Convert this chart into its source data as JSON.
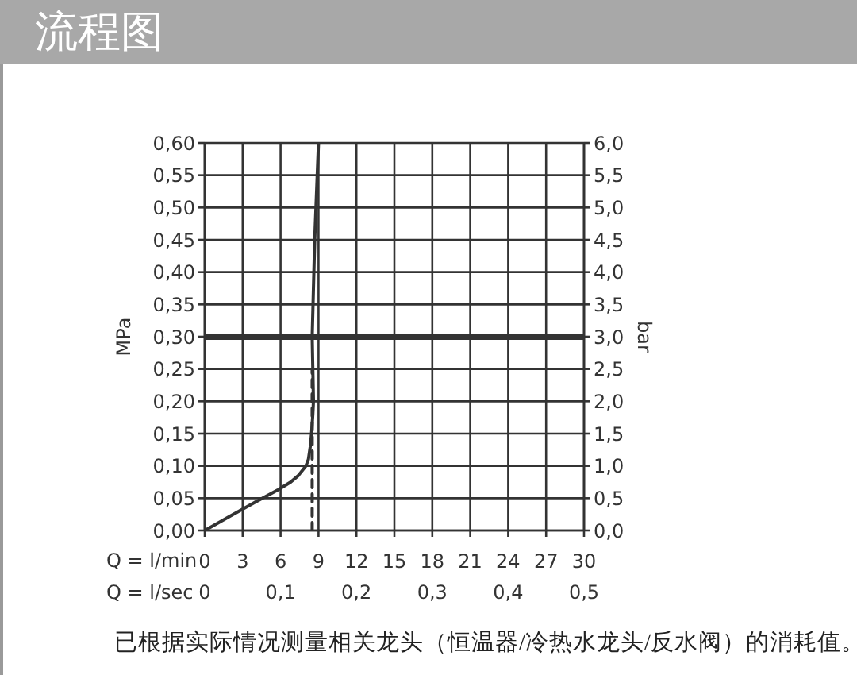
{
  "chart_data": {
    "type": "line",
    "title": "流程图",
    "xlabel": "Q = l/min",
    "x2label": "Q = l/sec",
    "ylabel": "MPa",
    "y2label": "bar",
    "xlim": [
      0,
      30
    ],
    "xticks": [
      0,
      3,
      6,
      9,
      12,
      15,
      18,
      21,
      24,
      27,
      30
    ],
    "x2lim": [
      0,
      0.5
    ],
    "x2ticks": [
      0,
      {
        "value": 0.1,
        "label": "0,1"
      },
      {
        "value": 0.2,
        "label": "0,2"
      },
      {
        "value": 0.3,
        "label": "0,3"
      },
      {
        "value": 0.4,
        "label": "0,4"
      },
      {
        "value": 0.5,
        "label": "0,5"
      }
    ],
    "ylim": [
      0,
      0.6
    ],
    "yticks": [
      {
        "value": 0,
        "label": "0,00"
      },
      {
        "value": 0.05,
        "label": "0,05"
      },
      {
        "value": 0.1,
        "label": "0,10"
      },
      {
        "value": 0.15,
        "label": "0,15"
      },
      {
        "value": 0.2,
        "label": "0,20"
      },
      {
        "value": 0.25,
        "label": "0,25"
      },
      {
        "value": 0.3,
        "label": "0,30"
      },
      {
        "value": 0.35,
        "label": "0,35"
      },
      {
        "value": 0.4,
        "label": "0,40"
      },
      {
        "value": 0.45,
        "label": "0,45"
      },
      {
        "value": 0.5,
        "label": "0,50"
      },
      {
        "value": 0.55,
        "label": "0,55"
      },
      {
        "value": 0.6,
        "label": "0,60"
      }
    ],
    "y2lim": [
      0,
      6
    ],
    "y2ticks": [
      {
        "value": 0,
        "label": "0,0"
      },
      {
        "value": 0.5,
        "label": "0,5"
      },
      {
        "value": 1,
        "label": "1,0"
      },
      {
        "value": 1.5,
        "label": "1,5"
      },
      {
        "value": 2,
        "label": "2,0"
      },
      {
        "value": 2.5,
        "label": "2,5"
      },
      {
        "value": 3,
        "label": "3,0"
      },
      {
        "value": 3.5,
        "label": "3,5"
      },
      {
        "value": 4,
        "label": "4,0"
      },
      {
        "value": 4.5,
        "label": "4,5"
      },
      {
        "value": 5,
        "label": "5,0"
      },
      {
        "value": 5.5,
        "label": "5,5"
      },
      {
        "value": 6,
        "label": "6,0"
      }
    ],
    "series": [
      {
        "color": "#333333",
        "x": [
          0,
          2,
          4,
          5.8,
          6.8,
          7.4,
          8.0,
          8.2,
          8.35,
          8.45,
          8.55,
          8.6,
          8.55,
          8.5,
          8.7,
          9.0
        ],
        "values": [
          0,
          0.022,
          0.044,
          0.063,
          0.075,
          0.085,
          0.1,
          0.11,
          0.13,
          0.15,
          0.18,
          0.2,
          0.25,
          0.3,
          0.45,
          0.6
        ]
      },
      {
        "color": "#333333",
        "line_style": "dashed",
        "x": [
          8.5,
          8.5
        ],
        "values": [
          0,
          0.25
        ]
      }
    ],
    "ref_lines": [
      {
        "axis": "y",
        "value": 0.3,
        "color": "#333333"
      }
    ],
    "grid": true,
    "marker": "none",
    "annotations": [
      "已根据实际情况测量相关龙头（恒温器/冷热水龙头/反水阀）的消耗值。"
    ]
  }
}
